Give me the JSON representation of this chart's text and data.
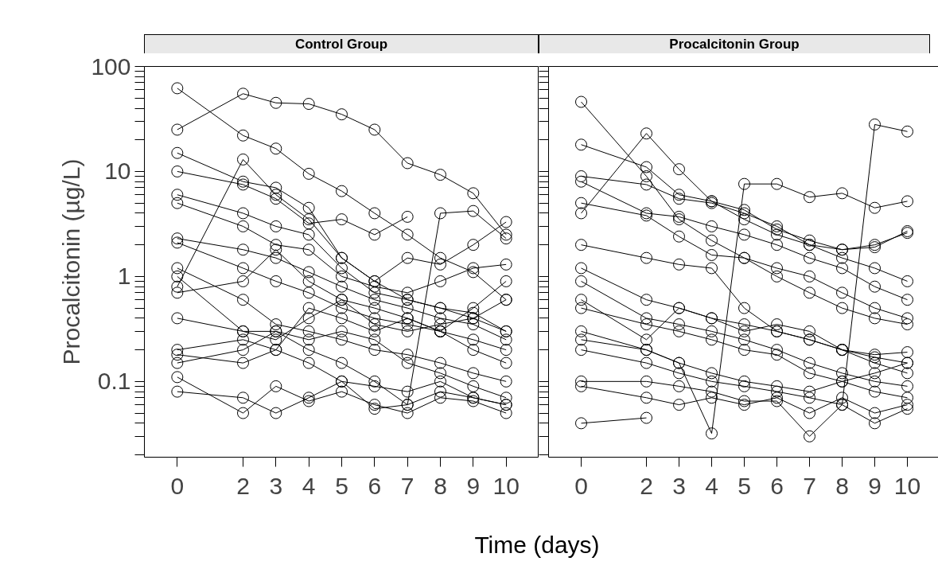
{
  "chart_data": [
    {
      "type": "line",
      "title": "Control Group",
      "ylabel": "Procalcitonin (µg/L)",
      "xlabel": "Time (days)",
      "log": "y",
      "marker": "circle",
      "line_style": "solid",
      "grid": false,
      "xlim": [
        -1,
        11
      ],
      "xticks": [
        0,
        2,
        3,
        4,
        5,
        6,
        7,
        8,
        9,
        10
      ],
      "ylim": [
        0.019,
        100
      ],
      "yticks": [
        {
          "value": 0.02,
          "label": null
        },
        {
          "value": 0.03,
          "label": null
        },
        {
          "value": 0.04,
          "label": null
        },
        {
          "value": 0.05,
          "label": null
        },
        {
          "value": 0.06,
          "label": null
        },
        {
          "value": 0.07,
          "label": null
        },
        {
          "value": 0.08,
          "label": null
        },
        {
          "value": 0.09,
          "label": null
        },
        0.1,
        {
          "value": 0.2,
          "label": null
        },
        {
          "value": 0.3,
          "label": null
        },
        {
          "value": 0.4,
          "label": null
        },
        {
          "value": 0.5,
          "label": null
        },
        {
          "value": 0.6,
          "label": null
        },
        {
          "value": 0.7,
          "label": null
        },
        {
          "value": 0.8,
          "label": null
        },
        {
          "value": 0.9,
          "label": null
        },
        1,
        {
          "value": 2,
          "label": null
        },
        {
          "value": 3,
          "label": null
        },
        {
          "value": 4,
          "label": null
        },
        {
          "value": 5,
          "label": null
        },
        {
          "value": 6,
          "label": null
        },
        {
          "value": 7,
          "label": null
        },
        {
          "value": 8,
          "label": null
        },
        {
          "value": 9,
          "label": null
        },
        10,
        {
          "value": 20,
          "label": null
        },
        {
          "value": 30,
          "label": null
        },
        {
          "value": 40,
          "label": null
        },
        {
          "value": 50,
          "label": null
        },
        {
          "value": 60,
          "label": null
        },
        {
          "value": 70,
          "label": null
        },
        {
          "value": 80,
          "label": null
        },
        {
          "value": 90,
          "label": null
        },
        100
      ],
      "x": [
        0,
        2,
        3,
        4,
        5,
        6,
        7,
        8,
        9,
        10
      ],
      "series": [
        {
          "color": "#000000",
          "values": [
            25,
            55,
            45,
            44,
            35,
            25,
            12,
            9.3,
            6.2,
            2.5
          ]
        },
        {
          "color": "#000000",
          "values": [
            62,
            22,
            16.5,
            9.5,
            6.5,
            4,
            2.5,
            1.5,
            1.1,
            0.6
          ]
        },
        {
          "color": "#000000",
          "values": [
            0.8,
            13,
            6,
            3.5,
            1.5,
            0.9,
            0.6,
            0.5,
            0.4,
            0.3
          ]
        },
        {
          "color": "#000000",
          "values": [
            10,
            7.5,
            5.5,
            3.2,
            3.5,
            2.5,
            3.7,
            null,
            null,
            null
          ]
        },
        {
          "color": "#000000",
          "values": [
            15,
            8,
            7,
            4.5,
            1.5,
            0.9,
            1.5,
            1.3,
            2,
            3.3
          ]
        },
        {
          "color": "#000000",
          "values": [
            0.15,
            0.2,
            0.3,
            0.2,
            0.15,
            0.1,
            0.06,
            4,
            4.2,
            2.3
          ]
        },
        {
          "color": "#000000",
          "values": [
            6,
            4,
            3,
            2.5,
            1.2,
            0.7,
            0.6,
            0.5,
            0.45,
            0.3
          ]
        },
        {
          "color": "#000000",
          "values": [
            2.3,
            1.8,
            1.5,
            1.1,
            0.8,
            0.6,
            0.5,
            0.4,
            0.35,
            0.25
          ]
        },
        {
          "color": "#000000",
          "values": [
            2.1,
            1.2,
            0.9,
            0.7,
            0.5,
            0.4,
            0.35,
            0.3,
            0.25,
            0.2
          ]
        },
        {
          "color": "#000000",
          "values": [
            1.2,
            0.6,
            0.35,
            0.3,
            0.25,
            0.2,
            0.18,
            0.15,
            0.12,
            0.1
          ]
        },
        {
          "color": "#000000",
          "values": [
            0.7,
            0.9,
            1.8,
            0.9,
            0.6,
            0.35,
            0.3,
            0.35,
            0.4,
            0.6
          ]
        },
        {
          "color": "#000000",
          "values": [
            0.4,
            0.3,
            0.3,
            0.25,
            0.3,
            0.25,
            0.15,
            0.12,
            0.09,
            0.07
          ]
        },
        {
          "color": "#000000",
          "values": [
            0.2,
            0.25,
            0.2,
            0.5,
            0.4,
            0.3,
            0.4,
            0.3,
            0.2,
            0.15
          ]
        },
        {
          "color": "#000000",
          "values": [
            0.18,
            0.15,
            0.2,
            0.15,
            0.1,
            0.09,
            0.08,
            0.1,
            0.07,
            0.06
          ]
        },
        {
          "color": "#000000",
          "values": [
            0.11,
            0.05,
            0.09,
            0.065,
            0.08,
            0.06,
            0.05,
            0.07,
            0.065,
            0.05
          ]
        },
        {
          "color": "#000000",
          "values": [
            0.08,
            0.07,
            0.05,
            0.07,
            0.1,
            0.055,
            0.06,
            0.08,
            0.07,
            0.06
          ]
        },
        {
          "color": "#000000",
          "values": [
            5,
            3,
            2,
            1.8,
            1,
            0.8,
            0.7,
            0.9,
            1.2,
            1.3
          ]
        },
        {
          "color": "#000000",
          "values": [
            1,
            0.3,
            0.25,
            0.4,
            0.6,
            0.5,
            0.4,
            0.3,
            0.5,
            0.9
          ]
        }
      ]
    },
    {
      "type": "line",
      "title": "Procalcitonin Group",
      "log": "y",
      "marker": "circle",
      "line_style": "solid",
      "grid": false,
      "tick_labels": "x",
      "xlim": [
        -1,
        11
      ],
      "xticks": [
        0,
        2,
        3,
        4,
        5,
        6,
        7,
        8,
        9,
        10
      ],
      "ylim": [
        0.019,
        100
      ],
      "yticks": [
        {
          "value": 0.02,
          "label": null
        },
        {
          "value": 0.03,
          "label": null
        },
        {
          "value": 0.04,
          "label": null
        },
        {
          "value": 0.05,
          "label": null
        },
        {
          "value": 0.06,
          "label": null
        },
        {
          "value": 0.07,
          "label": null
        },
        {
          "value": 0.08,
          "label": null
        },
        {
          "value": 0.09,
          "label": null
        },
        0.1,
        {
          "value": 0.2,
          "label": null
        },
        {
          "value": 0.3,
          "label": null
        },
        {
          "value": 0.4,
          "label": null
        },
        {
          "value": 0.5,
          "label": null
        },
        {
          "value": 0.6,
          "label": null
        },
        {
          "value": 0.7,
          "label": null
        },
        {
          "value": 0.8,
          "label": null
        },
        {
          "value": 0.9,
          "label": null
        },
        1,
        {
          "value": 2,
          "label": null
        },
        {
          "value": 3,
          "label": null
        },
        {
          "value": 4,
          "label": null
        },
        {
          "value": 5,
          "label": null
        },
        {
          "value": 6,
          "label": null
        },
        {
          "value": 7,
          "label": null
        },
        {
          "value": 8,
          "label": null
        },
        {
          "value": 9,
          "label": null
        },
        10,
        {
          "value": 20,
          "label": null
        },
        {
          "value": 30,
          "label": null
        },
        {
          "value": 40,
          "label": null
        },
        {
          "value": 50,
          "label": null
        },
        {
          "value": 60,
          "label": null
        },
        {
          "value": 70,
          "label": null
        },
        {
          "value": 80,
          "label": null
        },
        {
          "value": 90,
          "label": null
        },
        100
      ],
      "x": [
        0,
        2,
        3,
        4,
        5,
        6,
        7,
        8,
        9,
        10
      ],
      "series": [
        {
          "color": "#000000",
          "values": [
            46,
            9,
            3.5,
            2.2,
            1.5,
            1,
            0.7,
            0.5,
            0.4,
            0.35
          ]
        },
        {
          "color": "#000000",
          "values": [
            18,
            11,
            6,
            5.2,
            3.5,
            2.5,
            2,
            1.5,
            1.2,
            0.9
          ]
        },
        {
          "color": "#000000",
          "values": [
            4,
            23,
            10.5,
            5.2,
            4.3,
            2.8,
            2.2,
            1.8,
            1.9,
            2.7
          ]
        },
        {
          "color": "#000000",
          "values": [
            0.04,
            0.045,
            null,
            null,
            null,
            null,
            null,
            null,
            null,
            null
          ]
        },
        {
          "color": "#000000",
          "values": [
            0.3,
            0.2,
            0.15,
            0.032,
            7.6,
            7.6,
            5.7,
            6.2,
            4.5,
            5.2
          ]
        },
        {
          "color": "#000000",
          "values": [
            0.2,
            0.15,
            0.12,
            0.1,
            0.09,
            0.08,
            0.07,
            0.06,
            28,
            24
          ]
        },
        {
          "color": "#000000",
          "values": [
            9,
            7.5,
            5.5,
            5,
            4,
            3,
            2,
            1.8,
            2,
            2.6
          ]
        },
        {
          "color": "#000000",
          "values": [
            8,
            4,
            3.7,
            3,
            2.5,
            2,
            1.5,
            1.2,
            0.8,
            0.6
          ]
        },
        {
          "color": "#000000",
          "values": [
            5,
            3.8,
            2.4,
            1.6,
            1.5,
            1.2,
            1,
            0.7,
            0.5,
            0.4
          ]
        },
        {
          "color": "#000000",
          "values": [
            1.2,
            0.6,
            0.5,
            0.4,
            0.35,
            0.3,
            0.25,
            0.2,
            0.17,
            0.15
          ]
        },
        {
          "color": "#000000",
          "values": [
            0.9,
            0.4,
            0.35,
            0.3,
            0.25,
            0.2,
            0.15,
            0.12,
            0.1,
            0.09
          ]
        },
        {
          "color": "#000000",
          "values": [
            0.5,
            0.35,
            0.3,
            0.25,
            0.2,
            0.18,
            0.12,
            0.1,
            0.08,
            0.07
          ]
        },
        {
          "color": "#000000",
          "values": [
            0.25,
            0.2,
            0.15,
            0.12,
            0.1,
            0.09,
            0.08,
            0.1,
            0.12,
            0.15
          ]
        },
        {
          "color": "#000000",
          "values": [
            0.1,
            0.1,
            0.09,
            0.08,
            0.065,
            0.065,
            0.03,
            0.06,
            0.04,
            0.055
          ]
        },
        {
          "color": "#000000",
          "values": [
            0.09,
            0.07,
            0.06,
            0.07,
            0.06,
            0.07,
            0.05,
            0.07,
            0.05,
            0.06
          ]
        },
        {
          "color": "#000000",
          "values": [
            2,
            1.5,
            1.3,
            1.2,
            0.5,
            0.3,
            0.25,
            0.2,
            0.18,
            0.19
          ]
        },
        {
          "color": "#000000",
          "values": [
            0.6,
            0.25,
            0.5,
            0.4,
            0.3,
            0.35,
            0.3,
            0.2,
            0.15,
            0.12
          ]
        }
      ]
    }
  ]
}
